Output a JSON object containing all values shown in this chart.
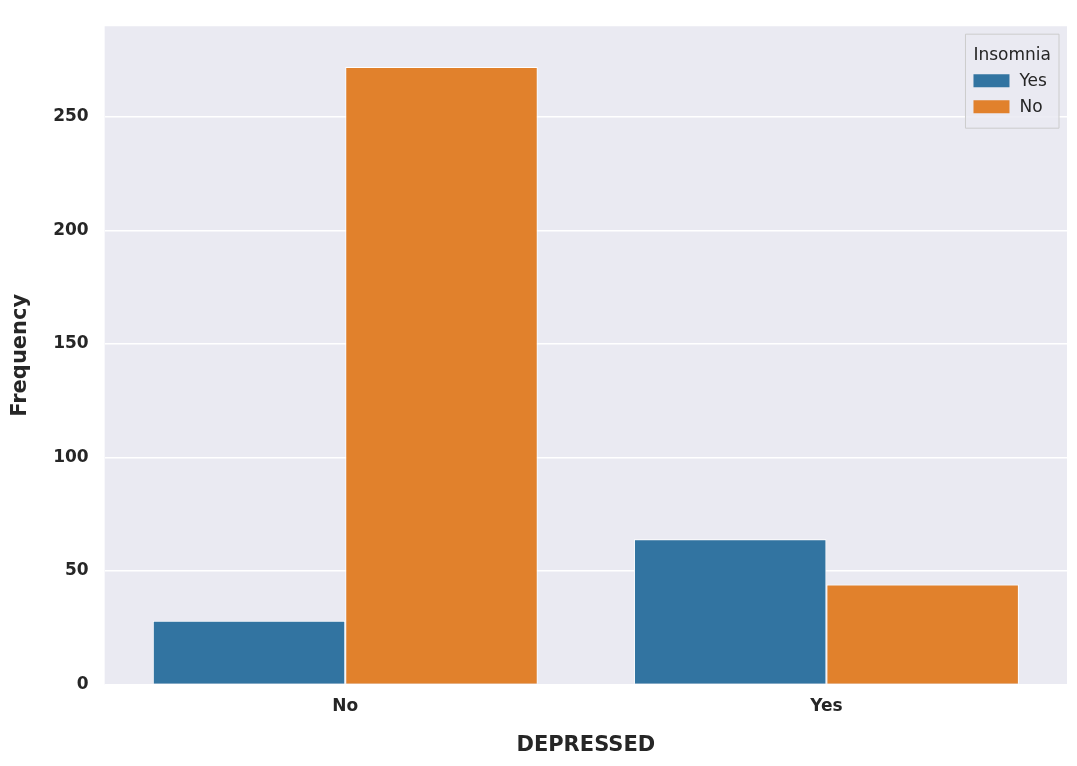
{
  "chart_data": {
    "type": "bar",
    "xlabel": "DEPRESSED",
    "ylabel": "Frequency",
    "legend_title": "Insomnia",
    "categories": [
      "No",
      "Yes"
    ],
    "series": [
      {
        "name": "Yes",
        "color": "#3274a1",
        "values": [
          28,
          64
        ]
      },
      {
        "name": "No",
        "color": "#e1812c",
        "values": [
          272,
          44
        ]
      }
    ],
    "ylim": [
      0,
      290
    ],
    "yticks": [
      0,
      50,
      100,
      150,
      200,
      250
    ],
    "grid": "y",
    "legend": "top right"
  }
}
